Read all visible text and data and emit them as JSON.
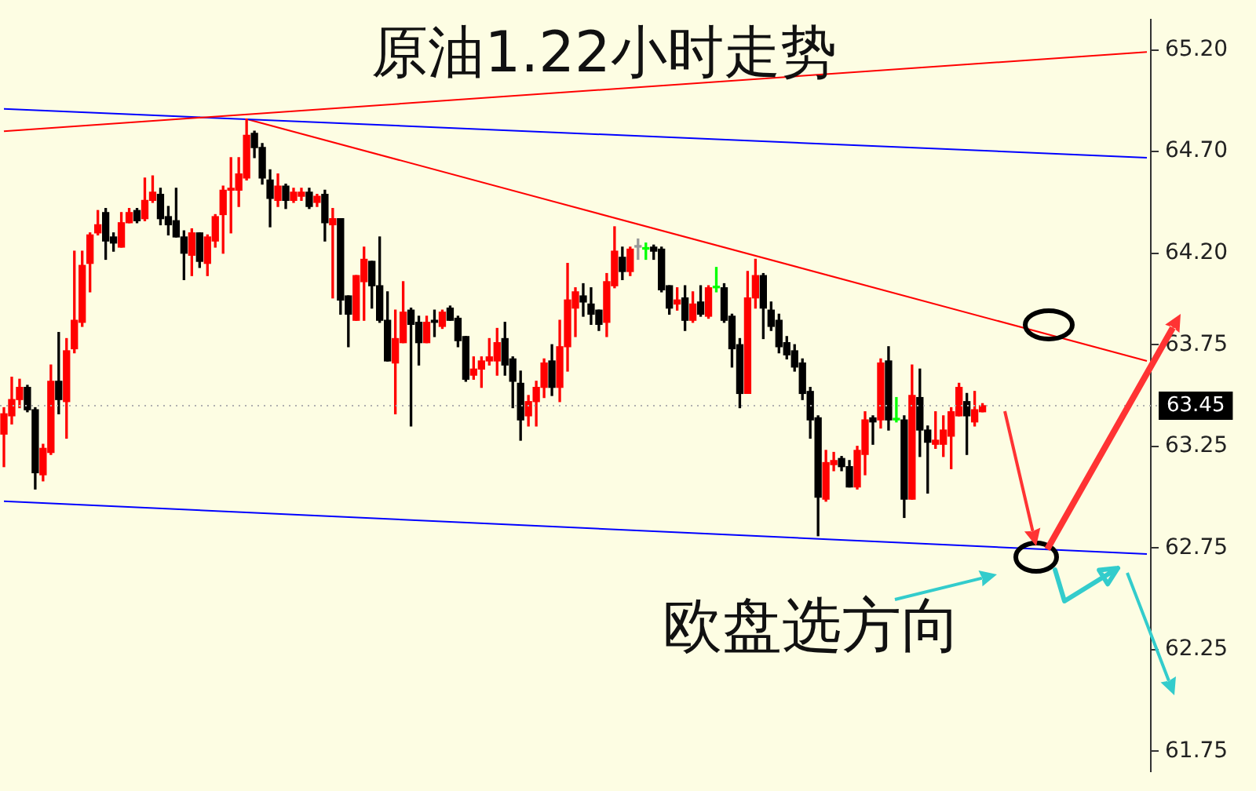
{
  "chart_data": {
    "type": "candlestick",
    "title": "原油1.22小时走势",
    "annotations": [
      "欧盘选方向"
    ],
    "categories": [
      null,
      null,
      null,
      null,
      null,
      null,
      null,
      null,
      null,
      null,
      null,
      null,
      null,
      null,
      null,
      null,
      null,
      null,
      null,
      null,
      null,
      null,
      null,
      null,
      null,
      null,
      null,
      null,
      null,
      null,
      null,
      null,
      null,
      null,
      null,
      null,
      null,
      null,
      null,
      null,
      null,
      null,
      null,
      null,
      null,
      null,
      null,
      null,
      null,
      null,
      null,
      null,
      null,
      null,
      null,
      null,
      null,
      null,
      null,
      null,
      null,
      null,
      null,
      null,
      null,
      null,
      null,
      null,
      null,
      null,
      null,
      null,
      null,
      null,
      null,
      null,
      null,
      null,
      null,
      null,
      null,
      null,
      null,
      null,
      null,
      null,
      null,
      null,
      null,
      null,
      null,
      null,
      null,
      null,
      null,
      null,
      null,
      null,
      null,
      null,
      null,
      null,
      null,
      null,
      null,
      null,
      null,
      null,
      null,
      null,
      null,
      null,
      null,
      null,
      null,
      null,
      null,
      null,
      null,
      null,
      null,
      null,
      null,
      null,
      null,
      null,
      null,
      null,
      null,
      null,
      null,
      null,
      null,
      null,
      null,
      null,
      null,
      null,
      null,
      null,
      null,
      null,
      null,
      null,
      null,
      null,
      null
    ],
    "series": [
      {
        "type": "candlestick",
        "ohlc": [
          [
            63.31,
            63.44,
            63.15,
            63.41
          ],
          [
            63.4,
            63.59,
            63.36,
            63.48
          ],
          [
            63.48,
            63.58,
            63.44,
            63.54
          ],
          [
            63.54,
            63.55,
            63.42,
            63.43
          ],
          [
            63.43,
            63.44,
            63.04,
            63.12
          ],
          [
            63.11,
            63.26,
            63.08,
            63.24
          ],
          [
            63.22,
            63.65,
            63.21,
            63.57
          ],
          [
            63.57,
            63.81,
            63.41,
            63.48
          ],
          [
            63.47,
            63.78,
            63.29,
            63.72
          ],
          [
            63.73,
            64.21,
            63.71,
            63.87
          ],
          [
            63.86,
            64.21,
            63.84,
            64.14
          ],
          [
            64.15,
            64.3,
            64.01,
            64.29
          ],
          [
            64.3,
            64.41,
            64.29,
            64.34
          ],
          [
            64.4,
            64.42,
            64.17,
            64.26
          ],
          [
            64.28,
            64.3,
            64.21,
            64.25
          ],
          [
            64.23,
            64.4,
            64.23,
            64.35
          ],
          [
            64.35,
            64.42,
            64.35,
            64.4
          ],
          [
            64.41,
            64.42,
            64.35,
            64.36
          ],
          [
            64.37,
            64.57,
            64.36,
            64.46
          ],
          [
            64.46,
            64.58,
            64.45,
            64.5
          ],
          [
            64.49,
            64.52,
            64.34,
            64.37
          ],
          [
            64.38,
            64.43,
            64.29,
            64.34
          ],
          [
            64.36,
            64.52,
            64.28,
            64.28
          ],
          [
            64.28,
            64.31,
            64.07,
            64.2
          ],
          [
            64.19,
            64.32,
            64.09,
            64.3
          ],
          [
            64.3,
            64.3,
            64.13,
            64.16
          ],
          [
            64.15,
            64.29,
            64.09,
            64.28
          ],
          [
            64.26,
            64.39,
            64.23,
            64.38
          ],
          [
            64.39,
            64.53,
            64.2,
            64.51
          ],
          [
            64.51,
            64.67,
            64.3,
            64.52
          ],
          [
            64.51,
            64.67,
            64.43,
            64.59
          ],
          [
            64.57,
            64.86,
            64.56,
            64.78
          ],
          [
            64.79,
            64.8,
            64.67,
            64.72
          ],
          [
            64.72,
            64.74,
            64.54,
            64.57
          ],
          [
            64.56,
            64.61,
            64.33,
            64.47
          ],
          [
            64.46,
            64.59,
            64.43,
            64.53
          ],
          [
            64.53,
            64.54,
            64.42,
            64.46
          ],
          [
            64.46,
            64.52,
            64.45,
            64.5
          ],
          [
            64.48,
            64.52,
            64.46,
            64.5
          ],
          [
            64.5,
            64.52,
            64.42,
            64.43
          ],
          [
            64.45,
            64.49,
            64.43,
            64.48
          ],
          [
            64.49,
            64.51,
            64.26,
            64.35
          ],
          [
            64.34,
            64.42,
            63.98,
            64.37
          ],
          [
            64.37,
            64.37,
            63.9,
            63.97
          ],
          [
            63.99,
            63.99,
            63.74,
            63.9
          ],
          [
            63.87,
            64.09,
            63.87,
            64.09
          ],
          [
            64.06,
            64.23,
            63.87,
            64.17
          ],
          [
            64.16,
            64.16,
            63.93,
            64.04
          ],
          [
            64.04,
            64.28,
            63.86,
            63.87
          ],
          [
            63.87,
            64.01,
            63.67,
            63.67
          ],
          [
            63.66,
            63.92,
            63.41,
            63.78
          ],
          [
            63.76,
            64.06,
            63.76,
            63.91
          ],
          [
            63.92,
            63.93,
            63.35,
            63.85
          ],
          [
            63.86,
            63.89,
            63.65,
            63.76
          ],
          [
            63.76,
            63.89,
            63.76,
            63.86
          ],
          [
            63.87,
            63.92,
            63.79,
            63.86
          ],
          [
            63.84,
            63.92,
            63.83,
            63.91
          ],
          [
            63.93,
            63.94,
            63.87,
            63.87
          ],
          [
            63.88,
            63.89,
            63.74,
            63.77
          ],
          [
            63.79,
            63.79,
            63.57,
            63.58
          ],
          [
            63.6,
            63.69,
            63.58,
            63.63
          ],
          [
            63.63,
            63.69,
            63.54,
            63.67
          ],
          [
            63.67,
            63.78,
            63.65,
            63.69
          ],
          [
            63.67,
            63.83,
            63.6,
            63.76
          ],
          [
            63.78,
            63.86,
            63.6,
            63.65
          ],
          [
            63.68,
            63.69,
            63.44,
            63.57
          ],
          [
            63.56,
            63.62,
            63.28,
            63.38
          ],
          [
            63.4,
            63.5,
            63.35,
            63.47
          ],
          [
            63.47,
            63.57,
            63.35,
            63.54
          ],
          [
            63.54,
            63.68,
            63.49,
            63.66
          ],
          [
            63.67,
            63.75,
            63.5,
            63.54
          ],
          [
            63.54,
            63.87,
            63.47,
            63.74
          ],
          [
            63.74,
            64.15,
            63.62,
            63.97
          ],
          [
            63.93,
            64.03,
            63.79,
            64.01
          ],
          [
            63.99,
            64.05,
            63.89,
            63.96
          ],
          [
            63.95,
            64.03,
            63.85,
            63.9
          ],
          [
            63.92,
            63.92,
            63.82,
            63.85
          ],
          [
            63.86,
            64.1,
            63.79,
            64.06
          ],
          [
            64.04,
            64.33,
            64.03,
            64.21
          ],
          [
            64.18,
            64.23,
            64.07,
            64.11
          ],
          [
            64.11,
            64.23,
            64.09,
            64.22
          ],
          [
            64.23,
            64.27,
            64.17,
            64.23
          ],
          [
            64.22,
            64.25,
            64.17,
            64.22
          ],
          [
            64.23,
            64.24,
            64.17,
            64.21
          ],
          [
            64.22,
            64.23,
            64.01,
            64.02
          ],
          [
            64.04,
            64.04,
            63.9,
            63.93
          ],
          [
            63.95,
            64.03,
            63.92,
            63.97
          ],
          [
            63.98,
            64.04,
            63.82,
            63.87
          ],
          [
            63.87,
            64.01,
            63.86,
            63.95
          ],
          [
            63.96,
            64.04,
            63.89,
            63.9
          ],
          [
            63.89,
            64.04,
            63.88,
            64.03
          ],
          [
            64.03,
            64.13,
            64.01,
            64.03
          ],
          [
            64.03,
            64.05,
            63.86,
            63.87
          ],
          [
            63.89,
            63.9,
            63.64,
            63.73
          ],
          [
            63.75,
            63.78,
            63.44,
            63.51
          ],
          [
            63.51,
            64.11,
            63.51,
            63.98
          ],
          [
            63.98,
            64.17,
            63.93,
            64.09
          ],
          [
            64.09,
            64.1,
            63.78,
            63.93
          ],
          [
            63.92,
            63.96,
            63.82,
            63.84
          ],
          [
            63.87,
            63.9,
            63.71,
            63.74
          ],
          [
            63.76,
            63.79,
            63.68,
            63.7
          ],
          [
            63.72,
            63.75,
            63.62,
            63.64
          ],
          [
            63.66,
            63.68,
            63.48,
            63.51
          ],
          [
            63.52,
            63.54,
            63.29,
            63.38
          ],
          [
            63.39,
            63.4,
            62.81,
            63.0
          ],
          [
            62.99,
            63.23,
            62.98,
            63.17
          ],
          [
            63.16,
            63.22,
            63.13,
            63.18
          ],
          [
            63.19,
            63.2,
            63.13,
            63.15
          ],
          [
            63.15,
            63.18,
            63.05,
            63.05
          ],
          [
            63.05,
            63.25,
            63.04,
            63.23
          ],
          [
            63.21,
            63.42,
            63.11,
            63.38
          ],
          [
            63.39,
            63.4,
            63.26,
            63.37
          ],
          [
            63.38,
            63.68,
            63.34,
            63.66
          ],
          [
            63.67,
            63.74,
            63.33,
            63.38
          ],
          [
            63.38,
            63.49,
            63.37,
            63.38
          ],
          [
            63.38,
            63.4,
            62.9,
            62.99
          ],
          [
            62.99,
            63.65,
            62.99,
            63.5
          ],
          [
            63.49,
            63.63,
            63.2,
            63.33
          ],
          [
            63.33,
            63.35,
            63.02,
            63.27
          ],
          [
            63.26,
            63.42,
            63.24,
            63.28
          ],
          [
            63.26,
            63.4,
            63.2,
            63.33
          ],
          [
            63.3,
            63.44,
            63.14,
            63.42
          ],
          [
            63.4,
            63.56,
            63.4,
            63.54
          ],
          [
            63.47,
            63.51,
            63.21,
            63.4
          ],
          [
            63.37,
            63.52,
            63.35,
            63.43
          ],
          [
            63.42,
            63.46,
            63.42,
            63.45
          ],
          null,
          null,
          null,
          null,
          null,
          null,
          null,
          null,
          null,
          null,
          null,
          null,
          null,
          null,
          null,
          null,
          null,
          null,
          null,
          null,
          null
        ],
        "colors": [
          "#ff0000",
          "#ff0000",
          "#ff0000",
          "#000000",
          "#000000",
          "#ff0000",
          "#ff0000",
          "#000000",
          "#ff0000",
          "#ff0000",
          "#ff0000",
          "#ff0000",
          "#ff0000",
          "#000000",
          "#000000",
          "#ff0000",
          "#ff0000",
          "#000000",
          "#ff0000",
          "#ff0000",
          "#000000",
          "#000000",
          "#000000",
          "#000000",
          "#ff0000",
          "#000000",
          "#ff0000",
          "#ff0000",
          "#ff0000",
          "#ff0000",
          "#ff0000",
          "#ff0000",
          "#000000",
          "#000000",
          "#000000",
          "#ff0000",
          "#000000",
          "#ff0000",
          "#ff0000",
          "#000000",
          "#ff0000",
          "#000000",
          "#ff0000",
          "#000000",
          "#000000",
          "#ff0000",
          "#ff0000",
          "#000000",
          "#000000",
          "#000000",
          "#ff0000",
          "#ff0000",
          "#000000",
          "#000000",
          "#ff0000",
          "#000000",
          "#ff0000",
          "#000000",
          "#000000",
          "#000000",
          "#ff0000",
          "#ff0000",
          "#ff0000",
          "#ff0000",
          "#000000",
          "#000000",
          "#000000",
          "#ff0000",
          "#ff0000",
          "#ff0000",
          "#000000",
          "#ff0000",
          "#ff0000",
          "#ff0000",
          "#000000",
          "#000000",
          "#000000",
          "#ff0000",
          "#ff0000",
          "#000000",
          "#ff0000",
          "#999999",
          "#00ff00",
          "#000000",
          "#000000",
          "#000000",
          "#ff0000",
          "#000000",
          "#ff0000",
          "#000000",
          "#ff0000",
          "#00ff00",
          "#000000",
          "#000000",
          "#000000",
          "#ff0000",
          "#ff0000",
          "#000000",
          "#000000",
          "#000000",
          "#000000",
          "#000000",
          "#000000",
          "#000000",
          "#000000",
          "#ff0000",
          "#ff0000",
          "#000000",
          "#000000",
          "#ff0000",
          "#ff0000",
          "#000000",
          "#ff0000",
          "#000000",
          "#00ff00",
          "#000000",
          "#ff0000",
          "#000000",
          "#000000",
          "#ff0000",
          "#ff0000",
          "#ff0000",
          "#ff0000",
          "#000000",
          "#ff0000",
          "#ff0000",
          null,
          null,
          null,
          null,
          null,
          null,
          null,
          null,
          null,
          null,
          null,
          null,
          null,
          null,
          null,
          null,
          null,
          null,
          null,
          null,
          null
        ]
      },
      {
        "type": "line",
        "color": "#ff0000",
        "values": [
          64.8,
          null,
          null,
          null,
          null,
          null,
          null,
          null,
          null,
          null,
          null,
          null,
          null,
          null,
          null,
          null,
          null,
          null,
          null,
          null,
          null,
          null,
          null,
          null,
          null,
          null,
          null,
          null,
          null,
          null,
          null,
          null,
          null,
          null,
          null,
          null,
          null,
          null,
          null,
          null,
          null,
          null,
          null,
          null,
          null,
          null,
          null,
          null,
          null,
          null,
          null,
          null,
          null,
          null,
          null,
          null,
          null,
          null,
          null,
          null,
          null,
          null,
          null,
          null,
          null,
          null,
          null,
          null,
          null,
          null,
          null,
          null,
          null,
          null,
          null,
          null,
          null,
          null,
          null,
          null,
          null,
          null,
          null,
          null,
          null,
          null,
          null,
          null,
          null,
          null,
          null,
          null,
          null,
          null,
          null,
          null,
          null,
          null,
          null,
          null,
          null,
          null,
          null,
          null,
          null,
          null,
          null,
          null,
          null,
          null,
          null,
          null,
          null,
          null,
          null,
          null,
          null,
          null,
          null,
          null,
          null,
          null,
          null,
          null,
          null,
          null,
          null,
          null,
          null,
          null,
          null,
          null,
          null,
          null,
          null,
          null,
          null,
          null,
          null,
          null,
          null,
          null,
          null,
          null,
          null,
          null,
          65.19
        ]
      },
      {
        "type": "line",
        "color": "#0000ff",
        "values": [
          64.91,
          null,
          null,
          null,
          null,
          null,
          null,
          null,
          null,
          null,
          null,
          null,
          null,
          null,
          null,
          null,
          null,
          null,
          null,
          null,
          null,
          null,
          null,
          null,
          null,
          null,
          null,
          null,
          null,
          null,
          null,
          null,
          null,
          null,
          null,
          null,
          null,
          null,
          null,
          null,
          null,
          null,
          null,
          null,
          null,
          null,
          null,
          null,
          null,
          null,
          null,
          null,
          null,
          null,
          null,
          null,
          null,
          null,
          null,
          null,
          null,
          null,
          null,
          null,
          null,
          null,
          null,
          null,
          null,
          null,
          null,
          null,
          null,
          null,
          null,
          null,
          null,
          null,
          null,
          null,
          null,
          null,
          null,
          null,
          null,
          null,
          null,
          null,
          null,
          null,
          null,
          null,
          null,
          null,
          null,
          null,
          null,
          null,
          null,
          null,
          null,
          null,
          null,
          null,
          null,
          null,
          null,
          null,
          null,
          null,
          null,
          null,
          null,
          null,
          null,
          null,
          null,
          null,
          null,
          null,
          null,
          null,
          null,
          null,
          null,
          null,
          null,
          null,
          null,
          null,
          null,
          null,
          null,
          null,
          null,
          null,
          null,
          null,
          null,
          null,
          null,
          null,
          null,
          null,
          null,
          null,
          64.67
        ]
      },
      {
        "type": "line",
        "color": "#ff0000",
        "values": [
          null,
          null,
          null,
          null,
          null,
          null,
          null,
          null,
          null,
          null,
          null,
          null,
          null,
          null,
          null,
          null,
          null,
          null,
          null,
          null,
          null,
          null,
          null,
          null,
          null,
          null,
          null,
          null,
          null,
          null,
          null,
          64.86,
          null,
          null,
          null,
          null,
          null,
          null,
          null,
          null,
          null,
          null,
          null,
          null,
          null,
          null,
          null,
          null,
          null,
          null,
          null,
          null,
          null,
          null,
          null,
          null,
          null,
          null,
          null,
          null,
          null,
          null,
          null,
          null,
          null,
          null,
          null,
          null,
          null,
          null,
          null,
          null,
          null,
          null,
          null,
          null,
          null,
          null,
          null,
          null,
          null,
          null,
          null,
          null,
          null,
          null,
          null,
          null,
          null,
          null,
          null,
          null,
          null,
          null,
          null,
          null,
          null,
          null,
          null,
          null,
          null,
          null,
          null,
          null,
          null,
          null,
          null,
          null,
          null,
          null,
          null,
          null,
          null,
          null,
          null,
          null,
          null,
          null,
          null,
          null,
          null,
          null,
          null,
          null,
          null,
          null,
          null,
          null,
          null,
          null,
          null,
          null,
          null,
          null,
          null,
          null,
          null,
          null,
          null,
          null,
          null,
          null,
          null,
          null,
          null,
          null,
          63.67
        ]
      },
      {
        "type": "line",
        "color": "#0000ff",
        "values": [
          62.98,
          null,
          null,
          null,
          null,
          null,
          null,
          null,
          null,
          null,
          null,
          null,
          null,
          null,
          null,
          null,
          null,
          null,
          null,
          null,
          null,
          null,
          null,
          null,
          null,
          null,
          null,
          null,
          null,
          null,
          null,
          null,
          null,
          null,
          null,
          null,
          null,
          null,
          null,
          null,
          null,
          null,
          null,
          null,
          null,
          null,
          null,
          null,
          null,
          null,
          null,
          null,
          null,
          null,
          null,
          null,
          null,
          null,
          null,
          null,
          null,
          null,
          null,
          null,
          null,
          null,
          null,
          null,
          null,
          null,
          null,
          null,
          null,
          null,
          null,
          null,
          null,
          null,
          null,
          null,
          null,
          null,
          null,
          null,
          null,
          null,
          null,
          null,
          null,
          null,
          null,
          null,
          null,
          null,
          null,
          null,
          null,
          null,
          null,
          null,
          null,
          null,
          null,
          null,
          null,
          null,
          null,
          null,
          null,
          null,
          null,
          null,
          null,
          null,
          null,
          null,
          null,
          null,
          null,
          null,
          null,
          null,
          null,
          null,
          null,
          null,
          null,
          null,
          null,
          null,
          null,
          null,
          null,
          null,
          null,
          null,
          null,
          null,
          null,
          null,
          null,
          null,
          null,
          null,
          null,
          null,
          62.72
        ]
      }
    ],
    "ylim": [
      61.65,
      65.35
    ],
    "yticks": [
      {
        "value": 61.75,
        "label": "61.75"
      },
      {
        "value": 62.25,
        "label": "62.25"
      },
      {
        "value": 62.75,
        "label": "62.75"
      },
      {
        "value": 63.25,
        "label": "63.25"
      },
      {
        "value": 63.75,
        "label": "63.75"
      },
      {
        "value": 64.2,
        "label": "64.20"
      },
      {
        "value": 64.7,
        "label": "64.70"
      },
      {
        "value": 65.2,
        "label": "65.20"
      }
    ],
    "ref_lines": [
      {
        "axis": "y",
        "value": 63.45,
        "label": "63.45"
      }
    ],
    "tick_labels": "y",
    "grid": false,
    "legend": false
  }
}
